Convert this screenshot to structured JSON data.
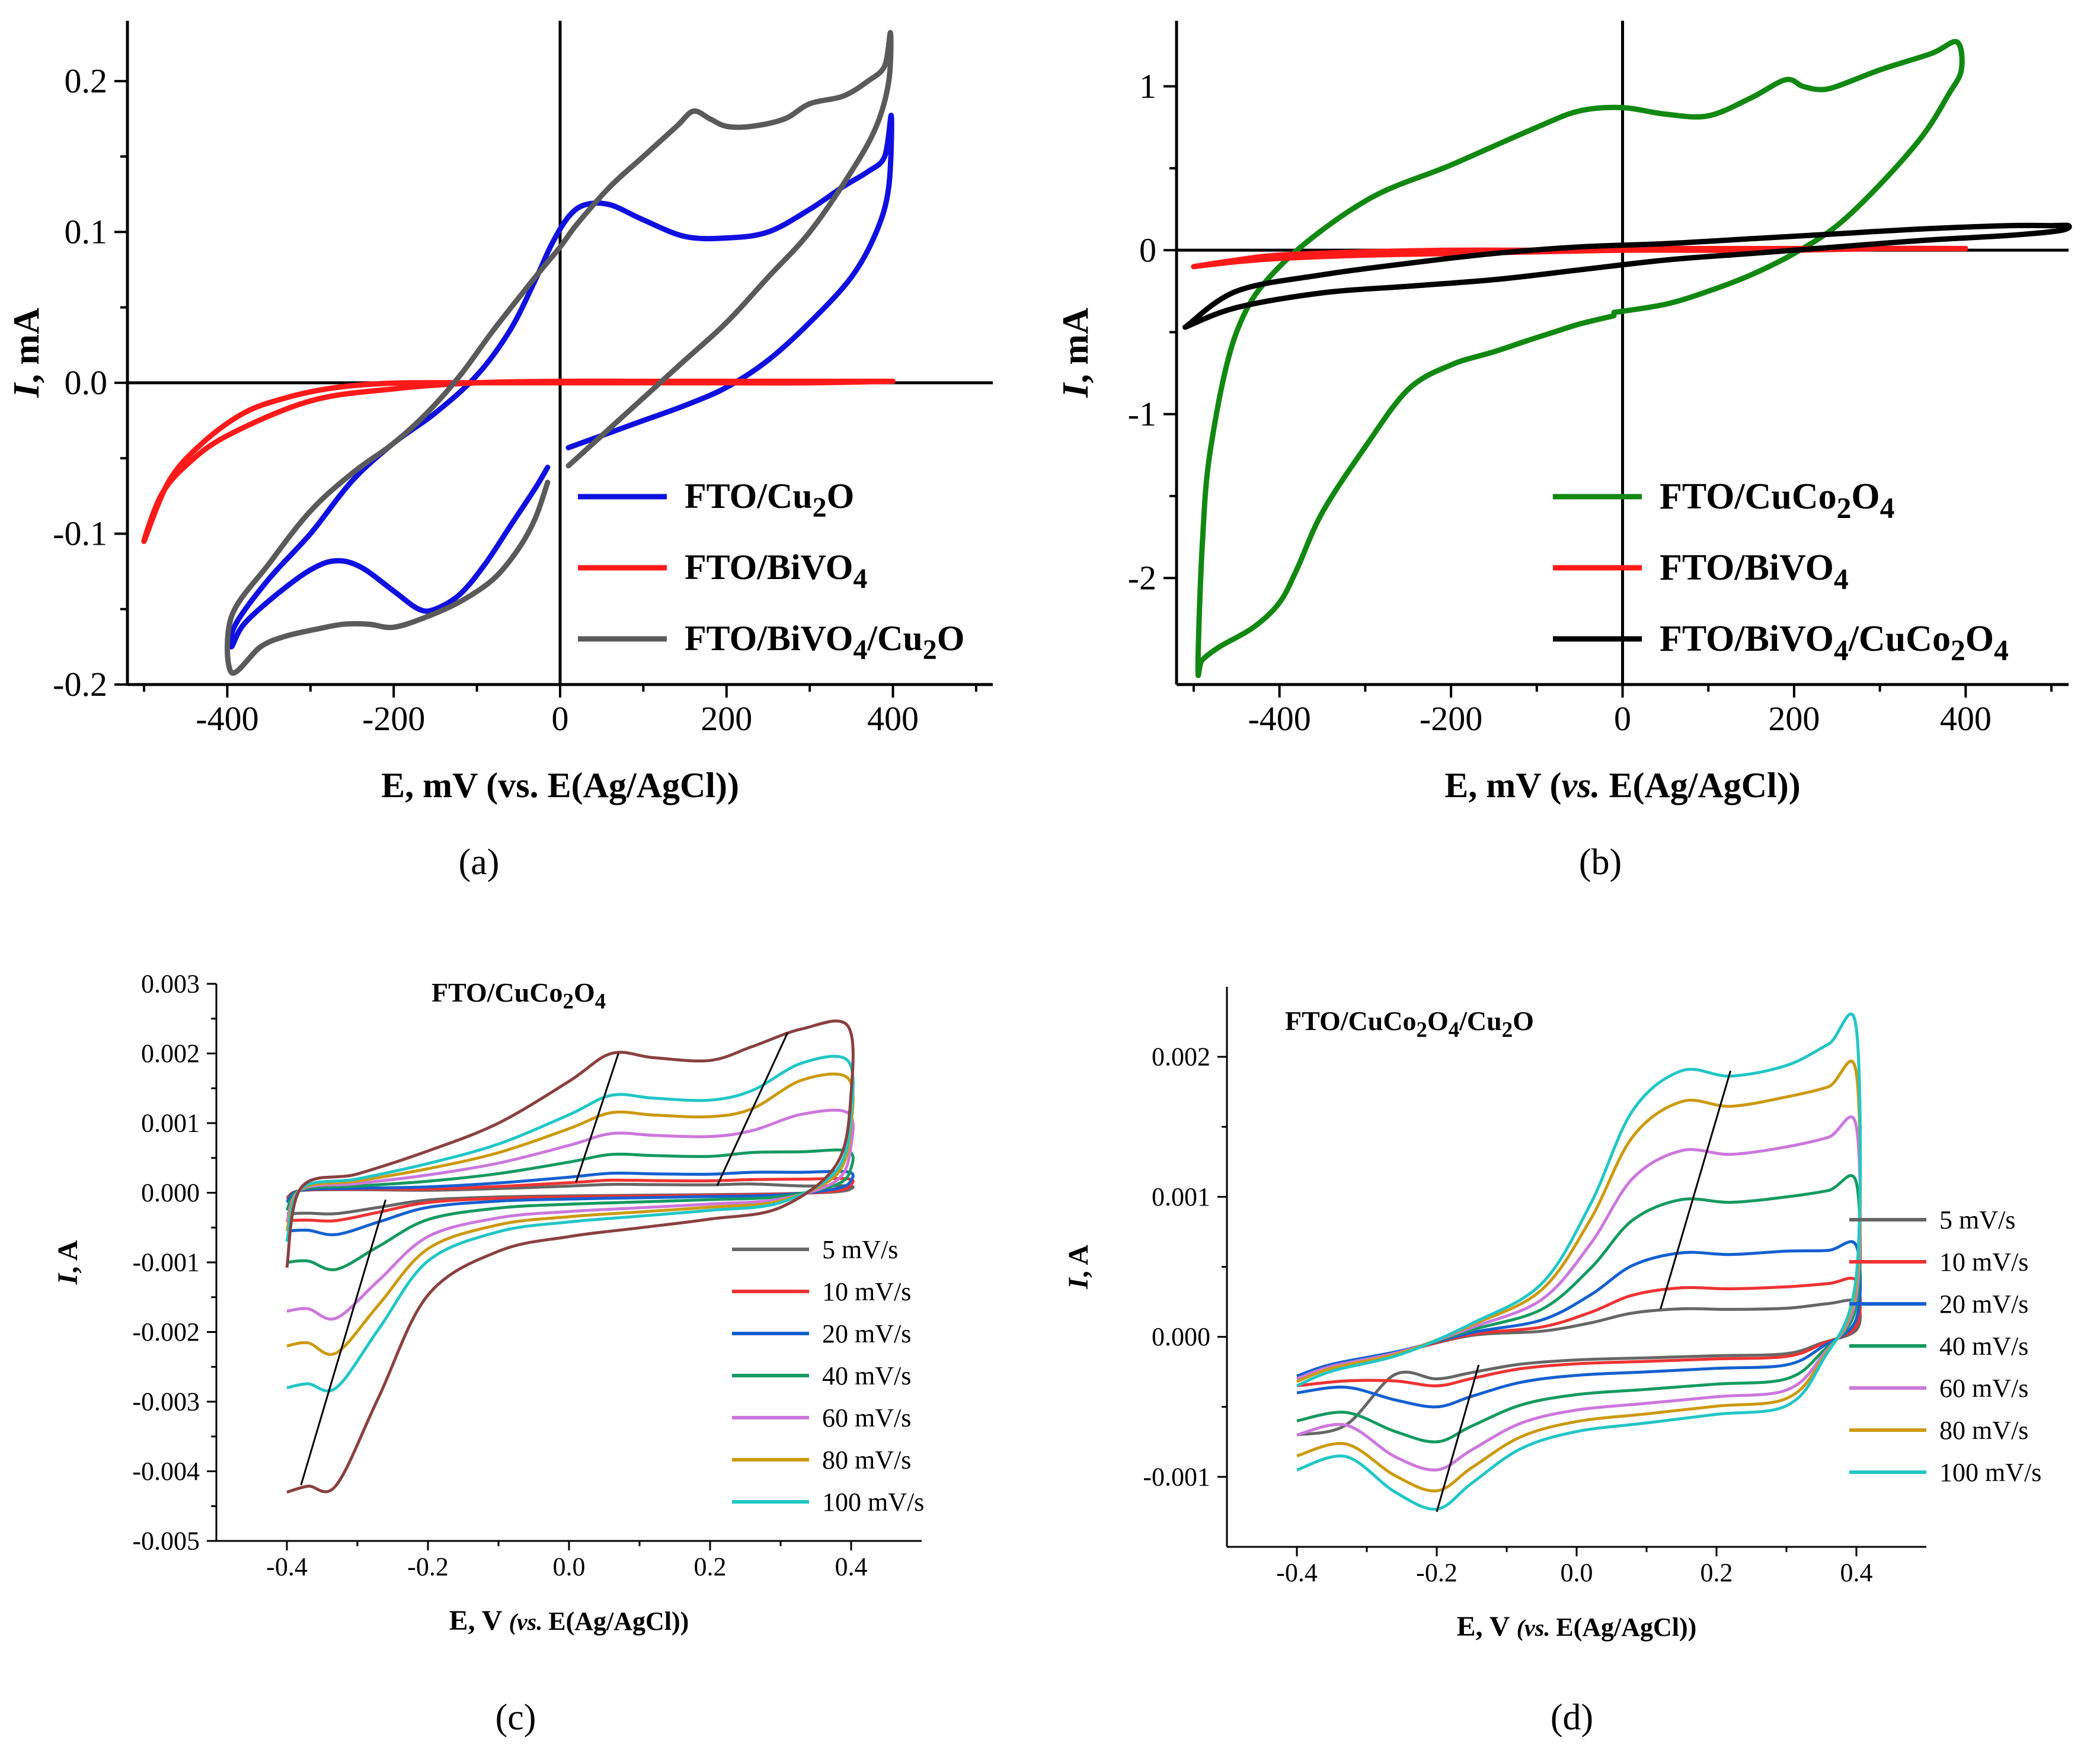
{
  "figure": {
    "captions": [
      "(a)",
      "(b)",
      "(c)",
      "(d)"
    ]
  },
  "chart_data": [
    {
      "id": "a",
      "type": "line",
      "subtype": "cyclic voltammogram",
      "caption": "(a)",
      "title": "",
      "xlabel": "E, mV (vs. E(Ag/AgCl))",
      "ylabel": "I, mA",
      "xlim": [
        -520,
        520
      ],
      "ylim": [
        -0.2,
        0.24
      ],
      "xticks": [
        -400,
        -200,
        0,
        200,
        400
      ],
      "xtick_labels": [
        "-400",
        "-200",
        "0",
        "200",
        "400"
      ],
      "yticks": [
        -0.2,
        -0.1,
        0.0,
        0.1,
        0.2
      ],
      "ytick_labels": [
        "-0.2",
        "-0.1",
        "0.0",
        "0.1",
        "0.2"
      ],
      "zero_lines": true,
      "legend_position": "bottom-right",
      "legend_style": "bold",
      "series": [
        {
          "name": "FTO/Cu2O",
          "label_main": "FTO/Cu",
          "label_sub": [
            [
              "2",
              "O"
            ]
          ],
          "color": "#1010e0",
          "x": [
            10,
            50,
            100,
            150,
            200,
            250,
            300,
            350,
            380,
            395,
            398,
            390,
            370,
            340,
            300,
            250,
            200,
            150,
            100,
            60,
            30,
            10,
            -10,
            -30,
            -60,
            -100,
            -150,
            -200,
            -250,
            -300,
            -350,
            -390,
            -395,
            -380,
            -340,
            -300,
            -270,
            -240,
            -200,
            -170,
            -150,
            -120,
            -90,
            -60,
            -30,
            -15
          ],
          "y": [
            -0.043,
            -0.035,
            -0.025,
            -0.015,
            -0.003,
            0.015,
            0.04,
            0.07,
            0.1,
            0.13,
            0.177,
            0.15,
            0.14,
            0.13,
            0.115,
            0.1,
            0.096,
            0.097,
            0.108,
            0.118,
            0.118,
            0.11,
            0.092,
            0.068,
            0.035,
            0.005,
            -0.02,
            -0.04,
            -0.065,
            -0.1,
            -0.13,
            -0.16,
            -0.175,
            -0.16,
            -0.14,
            -0.124,
            -0.118,
            -0.122,
            -0.138,
            -0.15,
            -0.15,
            -0.14,
            -0.12,
            -0.095,
            -0.07,
            -0.056
          ]
        },
        {
          "name": "FTO/BiVO4",
          "label_main": "FTO/BiVO",
          "label_sub": [
            [
              "4",
              ""
            ]
          ],
          "color": "#ff1a1a",
          "x": [
            400,
            300,
            200,
            100,
            0,
            -100,
            -200,
            -300,
            -400,
            -450,
            -480,
            -500,
            -470,
            -430,
            -380,
            -330,
            -280,
            -230,
            -180,
            -100,
            0,
            100,
            200,
            300,
            400
          ],
          "y": [
            0.001,
            0.001,
            0.001,
            0.001,
            0.001,
            0.0,
            -0.004,
            -0.012,
            -0.035,
            -0.055,
            -0.075,
            -0.105,
            -0.065,
            -0.04,
            -0.02,
            -0.01,
            -0.004,
            -0.001,
            0.0,
            0.0,
            0.0,
            0.0,
            0.0,
            0.0,
            0.001
          ]
        },
        {
          "name": "FTO/BiVO4/Cu2O",
          "label_main": "FTO/BiVO",
          "label_sub": [
            [
              "4",
              "/Cu"
            ],
            [
              "2",
              "O"
            ]
          ],
          "color": "#5a5a5a",
          "x": [
            10,
            50,
            100,
            150,
            200,
            250,
            300,
            350,
            380,
            395,
            397,
            390,
            370,
            340,
            300,
            270,
            230,
            200,
            180,
            160,
            140,
            100,
            60,
            20,
            0,
            -30,
            -80,
            -120,
            -160,
            -200,
            -250,
            -300,
            -350,
            -395,
            -395,
            -360,
            -330,
            -290,
            -260,
            -230,
            -200,
            -160,
            -120,
            -80,
            -50,
            -30,
            -15
          ],
          "y": [
            -0.055,
            -0.035,
            -0.01,
            0.015,
            0.04,
            0.07,
            0.1,
            0.14,
            0.17,
            0.2,
            0.232,
            0.21,
            0.2,
            0.19,
            0.185,
            0.175,
            0.17,
            0.17,
            0.175,
            0.18,
            0.17,
            0.15,
            0.13,
            0.105,
            0.09,
            0.07,
            0.035,
            0.005,
            -0.02,
            -0.04,
            -0.06,
            -0.085,
            -0.12,
            -0.155,
            -0.192,
            -0.175,
            -0.168,
            -0.163,
            -0.16,
            -0.16,
            -0.162,
            -0.155,
            -0.145,
            -0.13,
            -0.11,
            -0.09,
            -0.066
          ]
        }
      ]
    },
    {
      "id": "b",
      "type": "line",
      "subtype": "cyclic voltammogram",
      "caption": "(b)",
      "title": "",
      "xlabel_parts": [
        "E, mV (",
        "vs.",
        " E(Ag/AgCl))"
      ],
      "ylabel": "I, mA",
      "xlim": [
        -520,
        520
      ],
      "ylim": [
        -2.65,
        1.4
      ],
      "xticks": [
        -400,
        -200,
        0,
        200,
        400
      ],
      "xtick_labels": [
        "-400",
        "-200",
        "0",
        "200",
        "400"
      ],
      "yticks": [
        -2,
        -1,
        0,
        1
      ],
      "ytick_labels": [
        "-2",
        "-1",
        "0",
        "1"
      ],
      "zero_lines": true,
      "legend_position": "bottom-right",
      "legend_style": "bold",
      "series": [
        {
          "name": "FTO/CuCo2O4",
          "label_main": "FTO/CuCo",
          "label_sub": [
            [
              "2",
              "O"
            ],
            [
              "4",
              ""
            ]
          ],
          "color": "#118811",
          "x": [
            -10,
            50,
            100,
            150,
            200,
            250,
            300,
            350,
            380,
            395,
            390,
            360,
            300,
            250,
            230,
            210,
            190,
            150,
            100,
            50,
            0,
            -50,
            -100,
            -200,
            -300,
            -400,
            -450,
            -480,
            -490,
            -495,
            -490,
            -470,
            -430,
            -400,
            -380,
            -350,
            -300,
            -250,
            -200,
            -150,
            -110,
            -80,
            -50,
            -10
          ],
          "y": [
            -0.38,
            -0.33,
            -0.25,
            -0.15,
            -0.02,
            0.15,
            0.4,
            0.7,
            0.95,
            1.1,
            1.27,
            1.2,
            1.1,
            1.0,
            0.98,
            1.0,
            1.04,
            0.93,
            0.82,
            0.83,
            0.87,
            0.85,
            0.75,
            0.52,
            0.3,
            -0.1,
            -0.5,
            -1.2,
            -1.8,
            -2.55,
            -2.5,
            -2.42,
            -2.3,
            -2.15,
            -1.95,
            -1.6,
            -1.2,
            -0.85,
            -0.7,
            -0.62,
            -0.55,
            -0.5,
            -0.45,
            -0.4
          ]
        },
        {
          "name": "FTO/BiVO4",
          "label_main": "FTO/BiVO",
          "label_sub": [
            [
              "4",
              ""
            ]
          ],
          "color": "#ff1a1a",
          "x": [
            -500,
            -450,
            -400,
            -300,
            -200,
            -100,
            0,
            100,
            200,
            300,
            400,
            300,
            200,
            100,
            0,
            -100,
            -200,
            -300,
            -400,
            -450,
            -500
          ],
          "y": [
            -0.1,
            -0.06,
            -0.03,
            -0.01,
            0.0,
            0.0,
            0.01,
            0.01,
            0.01,
            0.01,
            0.01,
            0.01,
            0.0,
            0.0,
            0.0,
            -0.01,
            -0.02,
            -0.03,
            -0.05,
            -0.07,
            -0.1
          ]
        },
        {
          "name": "FTO/BiVO4/CuCo2O4",
          "label_main": "FTO/BiVO",
          "label_sub": [
            [
              "4",
              "/CuCo"
            ],
            [
              "2",
              "O"
            ],
            [
              "4",
              ""
            ]
          ],
          "color": "#000000",
          "x": [
            -510,
            -450,
            -350,
            -250,
            -150,
            -50,
            50,
            150,
            250,
            350,
            450,
            510,
            520,
            500,
            450,
            350,
            250,
            150,
            50,
            -50,
            -150,
            -250,
            -350,
            -450,
            -510
          ],
          "y": [
            -0.47,
            -0.35,
            -0.26,
            -0.22,
            -0.18,
            -0.12,
            -0.06,
            -0.02,
            0.02,
            0.06,
            0.09,
            0.12,
            0.15,
            0.15,
            0.15,
            0.13,
            0.1,
            0.07,
            0.04,
            0.02,
            -0.02,
            -0.08,
            -0.15,
            -0.25,
            -0.47
          ]
        }
      ]
    },
    {
      "id": "c",
      "type": "line",
      "subtype": "cyclic voltammogram, scan-rate series",
      "caption": "(c)",
      "title": "FTO/CuCo2O4",
      "title_main": "FTO/CuCo",
      "title_sub": [
        [
          "2",
          "O"
        ],
        [
          "4",
          ""
        ]
      ],
      "xlabel_parts": [
        "E, V ",
        "(vs. ",
        "E(Ag/AgCl))"
      ],
      "ylabel": "I, A",
      "xlim": [
        -0.5,
        0.5
      ],
      "ylim": [
        -0.005,
        0.003
      ],
      "xticks": [
        -0.4,
        -0.2,
        0.0,
        0.2,
        0.4
      ],
      "xtick_labels": [
        "-0.4",
        "-0.2",
        "0.0",
        "0.2",
        "0.4"
      ],
      "yticks": [
        -0.005,
        -0.004,
        -0.003,
        -0.002,
        -0.001,
        0.0,
        0.001,
        0.002,
        0.003
      ],
      "ytick_labels": [
        "-0.005",
        "-0.004",
        "-0.003",
        "-0.002",
        "-0.001",
        "0.000",
        "0.001",
        "0.002",
        "0.003"
      ],
      "legend_position": "bottom-right",
      "legend_style": "regular",
      "peak_trend_lines": [
        {
          "x": [
            0.01,
            0.07
          ],
          "y": [
            0.00015,
            0.002
          ]
        },
        {
          "x": [
            0.21,
            0.31
          ],
          "y": [
            0.0001,
            0.0023
          ]
        },
        {
          "x": [
            -0.38,
            -0.26
          ],
          "y": [
            -0.0042,
            -0.0001
          ]
        }
      ],
      "series": [
        {
          "name": "5 mV/s",
          "color": "#666666",
          "ox_peak": 0.00012,
          "red_peak": -0.0003,
          "vertex_high": 0.0001,
          "vertex_low": -0.0003,
          "tail": 5e-05
        },
        {
          "name": "10 mV/s",
          "color": "#ee3333",
          "ox_peak": 0.00018,
          "red_peak": -0.0004,
          "vertex_high": 0.0002,
          "vertex_low": -0.0004,
          "tail": 0.0001
        },
        {
          "name": "20 mV/s",
          "color": "#1560d0",
          "ox_peak": 0.00028,
          "red_peak": -0.0006,
          "vertex_high": 0.0003,
          "vertex_low": -0.00055,
          "tail": 0.0002
        },
        {
          "name": "40 mV/s",
          "color": "#159a60",
          "ox_peak": 0.00055,
          "red_peak": -0.0011,
          "vertex_high": 0.0006,
          "vertex_low": -0.001,
          "tail": 0.0004
        },
        {
          "name": "60 mV/s",
          "color": "#cc77dd",
          "ox_peak": 0.00085,
          "red_peak": -0.0018,
          "vertex_high": 0.00115,
          "vertex_low": -0.0017,
          "tail": 0.0006
        },
        {
          "name": "80 mV/s",
          "color": "#cc9a10",
          "ox_peak": 0.00115,
          "red_peak": -0.0023,
          "vertex_high": 0.00165,
          "vertex_low": -0.0022,
          "tail": 0.0009
        },
        {
          "name": "100 mV/s",
          "color": "#22c6c6",
          "ox_peak": 0.0014,
          "red_peak": -0.0028,
          "vertex_high": 0.0019,
          "vertex_low": -0.0028,
          "tail": 0.0011
        },
        {
          "name": "",
          "color": "#8a4040",
          "ox_peak": 0.002,
          "red_peak": -0.0042,
          "vertex_high": 0.0024,
          "vertex_low": -0.0043,
          "tail": 0.0014
        }
      ]
    },
    {
      "id": "d",
      "type": "line",
      "subtype": "cyclic voltammogram, scan-rate series",
      "caption": "(d)",
      "title": "FTO/CuCo2O4/Cu2O",
      "title_main": "FTO/CuCo",
      "title_sub": [
        [
          "2",
          "O"
        ],
        [
          "4",
          "/Cu"
        ],
        [
          "2",
          "O"
        ]
      ],
      "xlabel_parts": [
        "E, V ",
        "(vs. ",
        "E(Ag/AgCl))"
      ],
      "ylabel": "I, A",
      "xlim": [
        -0.5,
        0.5
      ],
      "ylim": [
        -0.0015,
        0.0025
      ],
      "xticks": [
        -0.4,
        -0.2,
        0.0,
        0.2,
        0.4
      ],
      "xtick_labels": [
        "-0.4",
        "-0.2",
        "0.0",
        "0.2",
        "0.4"
      ],
      "yticks": [
        -0.001,
        0.0,
        0.001,
        0.002
      ],
      "ytick_labels": [
        "-0.001",
        "0.000",
        "0.001",
        "0.002"
      ],
      "legend_position": "right",
      "legend_style": "regular",
      "peak_trend_lines": [
        {
          "x": [
            0.12,
            0.22
          ],
          "y": [
            0.0002,
            0.0019
          ]
        },
        {
          "x": [
            -0.2,
            -0.14
          ],
          "y": [
            -0.00125,
            -0.0002
          ]
        }
      ],
      "series": [
        {
          "name": "5 mV/s",
          "color": "#666666",
          "ox_peak": 0.0002,
          "red_peak": -0.0003,
          "vertex_high": 0.00025,
          "vertex_low": -0.0007,
          "start": -0.0003
        },
        {
          "name": "10 mV/s",
          "color": "#ee3333",
          "ox_peak": 0.00035,
          "red_peak": -0.00035,
          "vertex_high": 0.0004,
          "vertex_low": -0.00035,
          "start": -0.0003
        },
        {
          "name": "20 mV/s",
          "color": "#1560d0",
          "ox_peak": 0.0006,
          "red_peak": -0.0005,
          "vertex_high": 0.00065,
          "vertex_low": -0.0004,
          "start": -0.00028
        },
        {
          "name": "40 mV/s",
          "color": "#159a60",
          "ox_peak": 0.00098,
          "red_peak": -0.00075,
          "vertex_high": 0.0011,
          "vertex_low": -0.0006,
          "start": -0.0003
        },
        {
          "name": "60 mV/s",
          "color": "#cc77dd",
          "ox_peak": 0.00133,
          "red_peak": -0.00095,
          "vertex_high": 0.0015,
          "vertex_low": -0.0007,
          "start": -0.0003
        },
        {
          "name": "80 mV/s",
          "color": "#cc9a10",
          "ox_peak": 0.00168,
          "red_peak": -0.0011,
          "vertex_high": 0.00188,
          "vertex_low": -0.00085,
          "start": -0.00032
        },
        {
          "name": "100 mV/s",
          "color": "#22c6c6",
          "ox_peak": 0.0019,
          "red_peak": -0.00123,
          "vertex_high": 0.0022,
          "vertex_low": -0.00095,
          "start": -0.00035
        }
      ]
    }
  ]
}
